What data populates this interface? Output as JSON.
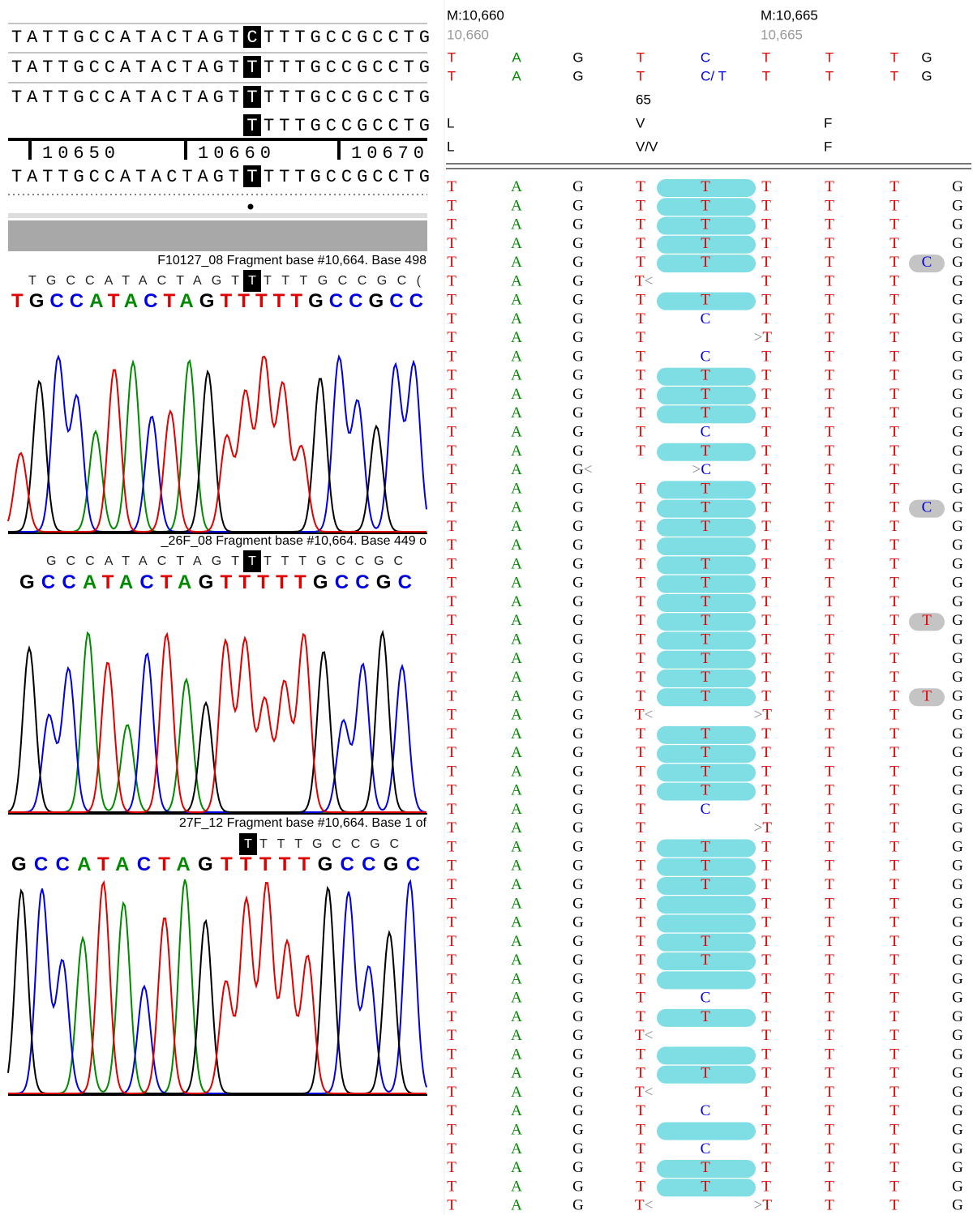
{
  "reference_panel": {
    "rows": [
      {
        "left": "TATTGCCATACTAGT",
        "mark": "C",
        "right": "TTTGCCGCCTG"
      },
      {
        "left": "TATTGCCATACTAGT",
        "mark": "T",
        "right": "TTTGCCGCCTG"
      },
      {
        "left": "TATTGCCATACTAGT",
        "mark": "T",
        "right": "TTTGCCGCCTG"
      },
      {
        "mark": "T",
        "right": "TTTGCCGCCTG"
      }
    ],
    "ruler": [
      "10650",
      "10660",
      "10670"
    ],
    "consensus": {
      "left": "TATTGCCATACTAGT",
      "mark": "T",
      "right": "TTTGCCGCCTG"
    }
  },
  "traces": [
    {
      "title": "F10127_08 Fragment base #10,664.  Base 498",
      "read": {
        "left": "TGCCATACTAGT",
        "mark": "T",
        "right": "TTTGCCGC("
      },
      "calls": "TGCCATACTAGTTTTTGCCGCC"
    },
    {
      "title": "_26F_08 Fragment base #10,664.  Base 449 o",
      "read": {
        "left": "GCCATACTAGT",
        "mark": "T",
        "right": "TTTGCCGC"
      },
      "calls": "GCCATACTAGTTTTTGCCGC"
    },
    {
      "title": "27F_12 Fragment base #10,664.  Base 1 of",
      "read": {
        "mark": "T",
        "right": "TTTGCCGC"
      },
      "calls": "GCCATACTAGTTTTTGCCGC"
    }
  ],
  "alignment": {
    "positions": [
      {
        "label": "M:10,660",
        "sub": "10,660"
      },
      {
        "label": "M:10,665",
        "sub": "10,665"
      }
    ],
    "reference": [
      [
        "T",
        "A",
        "G",
        "T",
        "C",
        "T",
        "T",
        "T",
        "G"
      ],
      [
        "T",
        "A",
        "G",
        "T",
        "C/ T",
        "T",
        "T",
        "T",
        "G"
      ]
    ],
    "codon_number": "65",
    "translation": [
      [
        "L",
        "V",
        "F"
      ],
      [
        "L",
        "V/V",
        "F"
      ]
    ],
    "reads": [
      {
        "bases": [
          "T",
          "A",
          "G",
          "T",
          "T",
          "T",
          "T",
          "T",
          null,
          "G"
        ],
        "highlight": true
      },
      {
        "bases": [
          "T",
          "A",
          "G",
          "T",
          "T",
          "T",
          "T",
          "T",
          null,
          "G"
        ],
        "highlight": true
      },
      {
        "bases": [
          "T",
          "A",
          "G",
          "T",
          "T",
          "T",
          "T",
          "T",
          null,
          "G"
        ],
        "highlight": true
      },
      {
        "bases": [
          "T",
          "A",
          "G",
          "T",
          "T",
          "T",
          "T",
          "T",
          null,
          "G"
        ],
        "highlight": true
      },
      {
        "bases": [
          "T",
          "A",
          "G",
          "T",
          "T",
          "T",
          "T",
          "T",
          "C",
          "G"
        ],
        "highlight": true
      },
      {
        "bases": [
          "T",
          "A",
          "G",
          "T<",
          null,
          "T",
          "T",
          "T",
          null,
          "G"
        ],
        "highlight": false
      },
      {
        "bases": [
          "T",
          "A",
          "G",
          "T",
          "T",
          "T",
          "T",
          "T",
          null,
          "G"
        ],
        "highlight": true
      },
      {
        "bases": [
          "T",
          "A",
          "G",
          "T",
          "C",
          "T",
          "T",
          "T",
          null,
          "G"
        ],
        "highlight": false
      },
      {
        "bases": [
          "T",
          "A",
          "G",
          "T",
          null,
          ">T",
          "T",
          "T",
          null,
          "G"
        ],
        "highlight": false
      },
      {
        "bases": [
          "T",
          "A",
          "G",
          "T",
          "C",
          "T",
          "T",
          "T",
          null,
          "G"
        ],
        "highlight": false
      },
      {
        "bases": [
          "T",
          "A",
          "G",
          "T",
          "T",
          "T",
          "T",
          "T",
          null,
          "G"
        ],
        "highlight": true
      },
      {
        "bases": [
          "T",
          "A",
          "G",
          "T",
          "T",
          "T",
          "T",
          "T",
          null,
          "G"
        ],
        "highlight": true
      },
      {
        "bases": [
          "T",
          "A",
          "G",
          "T",
          "T",
          "T",
          "T",
          "T",
          null,
          "G"
        ],
        "highlight": true
      },
      {
        "bases": [
          "T",
          "A",
          "G",
          "T",
          "C",
          "T",
          "T",
          "T",
          null,
          "G"
        ],
        "highlight": false
      },
      {
        "bases": [
          "T",
          "A",
          "G",
          "T",
          "T",
          "T",
          "T",
          "T",
          null,
          "G"
        ],
        "highlight": true
      },
      {
        "bases": [
          "T",
          "A",
          "G<",
          null,
          ">C",
          "T",
          "T",
          "T",
          null,
          "G"
        ],
        "highlight": false
      },
      {
        "bases": [
          "T",
          "A",
          "G",
          "T",
          "T",
          "T",
          "T",
          "T",
          null,
          "G"
        ],
        "highlight": true
      },
      {
        "bases": [
          "T",
          "A",
          "G",
          "T",
          "T",
          "T",
          "T",
          "T",
          "C",
          "G"
        ],
        "highlight": true
      },
      {
        "bases": [
          "T",
          "A",
          "G",
          "T",
          "T",
          "T",
          "T",
          "T",
          null,
          "G"
        ],
        "highlight": true
      },
      {
        "bases": [
          "T",
          "A",
          "G",
          "T",
          null,
          "T",
          "T",
          "T",
          null,
          "G"
        ],
        "highlight": true
      },
      {
        "bases": [
          "T",
          "A",
          "G",
          "T",
          "T",
          "T",
          "T",
          "T",
          null,
          "G"
        ],
        "highlight": true
      },
      {
        "bases": [
          "T",
          "A",
          "G",
          "T",
          "T",
          "T",
          "T",
          "T",
          null,
          "G"
        ],
        "highlight": true
      },
      {
        "bases": [
          "T",
          "A",
          "G",
          "T",
          "T",
          "T",
          "T",
          "T",
          null,
          "G"
        ],
        "highlight": true
      },
      {
        "bases": [
          "T",
          "A",
          "G",
          "T",
          "T",
          "T",
          "T",
          "T",
          "T",
          "G"
        ],
        "highlight": true
      },
      {
        "bases": [
          "T",
          "A",
          "G",
          "T",
          "T",
          "T",
          "T",
          "T",
          null,
          "G"
        ],
        "highlight": true
      },
      {
        "bases": [
          "T",
          "A",
          "G",
          "T",
          "T",
          "T",
          "T",
          "T",
          null,
          "G"
        ],
        "highlight": true
      },
      {
        "bases": [
          "T",
          "A",
          "G",
          "T",
          "T",
          "T",
          "T",
          "T",
          null,
          "G"
        ],
        "highlight": true
      },
      {
        "bases": [
          "T",
          "A",
          "G",
          "T",
          "T",
          "T",
          "T",
          "T",
          "T",
          "G"
        ],
        "highlight": true
      },
      {
        "bases": [
          "T",
          "A",
          "G",
          "T<",
          null,
          ">T",
          "T",
          "T",
          null,
          "G"
        ],
        "highlight": false
      },
      {
        "bases": [
          "T",
          "A",
          "G",
          "T",
          "T",
          "T",
          "T",
          "T",
          null,
          "G"
        ],
        "highlight": true
      },
      {
        "bases": [
          "T",
          "A",
          "G",
          "T",
          "T",
          "T",
          "T",
          "T",
          null,
          "G"
        ],
        "highlight": true
      },
      {
        "bases": [
          "T",
          "A",
          "G",
          "T",
          "T",
          "T",
          "T",
          "T",
          null,
          "G"
        ],
        "highlight": true
      },
      {
        "bases": [
          "T",
          "A",
          "G",
          "T",
          "T",
          "T",
          "T",
          "T",
          null,
          "G"
        ],
        "highlight": true
      },
      {
        "bases": [
          "T",
          "A",
          "G",
          "T",
          "C",
          "T",
          "T",
          "T",
          null,
          "G"
        ],
        "highlight": false
      },
      {
        "bases": [
          "T",
          "A",
          "G",
          "T",
          null,
          ">T",
          "T",
          "T",
          null,
          "G"
        ],
        "highlight": false
      },
      {
        "bases": [
          "T",
          "A",
          "G",
          "T",
          "T",
          "T",
          "T",
          "T",
          null,
          "G"
        ],
        "highlight": true
      },
      {
        "bases": [
          "T",
          "A",
          "G",
          "T",
          "T",
          "T",
          "T",
          "T",
          null,
          "G"
        ],
        "highlight": true
      },
      {
        "bases": [
          "T",
          "A",
          "G",
          "T",
          "T",
          "T",
          "T",
          "T",
          null,
          "G"
        ],
        "highlight": true
      },
      {
        "bases": [
          "T",
          "A",
          "G",
          "T",
          null,
          "T",
          "T",
          "T",
          null,
          "G"
        ],
        "highlight": true
      },
      {
        "bases": [
          "T",
          "A",
          "G",
          "T",
          null,
          "T",
          "T",
          "T",
          null,
          "G"
        ],
        "highlight": true
      },
      {
        "bases": [
          "T",
          "A",
          "G",
          "T",
          "T",
          "T",
          "T",
          "T",
          null,
          "G"
        ],
        "highlight": true
      },
      {
        "bases": [
          "T",
          "A",
          "G",
          "T",
          "T",
          "T",
          "T",
          "T",
          null,
          "G"
        ],
        "highlight": true
      },
      {
        "bases": [
          "T",
          "A",
          "G",
          "T",
          null,
          "T",
          "T",
          "T",
          null,
          "G"
        ],
        "highlight": true
      },
      {
        "bases": [
          "T",
          "A",
          "G",
          "T",
          "C",
          "T",
          "T",
          "T",
          null,
          "G"
        ],
        "highlight": false
      },
      {
        "bases": [
          "T",
          "A",
          "G",
          "T",
          "T",
          "T",
          "T",
          "T",
          null,
          "G"
        ],
        "highlight": true
      },
      {
        "bases": [
          "T",
          "A",
          "G",
          "T<",
          null,
          "T",
          "T",
          "T",
          null,
          "G"
        ],
        "highlight": false
      },
      {
        "bases": [
          "T",
          "A",
          "G",
          "T",
          null,
          "T",
          "T",
          "T",
          null,
          "G"
        ],
        "highlight": true
      },
      {
        "bases": [
          "T",
          "A",
          "G",
          "T",
          "T",
          "T",
          "T",
          "T",
          null,
          "G"
        ],
        "highlight": true
      },
      {
        "bases": [
          "T",
          "A",
          "G",
          "T<",
          null,
          "T",
          "T",
          "T",
          null,
          "G"
        ],
        "highlight": false
      },
      {
        "bases": [
          "T",
          "A",
          "G",
          "T",
          "C",
          "T",
          "T",
          "T",
          null,
          "G"
        ],
        "highlight": false
      },
      {
        "bases": [
          "T",
          "A",
          "G",
          "T",
          null,
          "T",
          "T",
          "T",
          null,
          "G"
        ],
        "highlight": true
      },
      {
        "bases": [
          "T",
          "A",
          "G",
          "T",
          "C",
          "T",
          "T",
          "T",
          null,
          "G"
        ],
        "highlight": false
      },
      {
        "bases": [
          "T",
          "A",
          "G",
          "T",
          "T",
          "T",
          "T",
          "T",
          null,
          "G"
        ],
        "highlight": true
      },
      {
        "bases": [
          "T",
          "A",
          "G",
          "T",
          "T",
          "T",
          "T",
          "T",
          null,
          "G"
        ],
        "highlight": true
      },
      {
        "bases": [
          "T",
          "A",
          "G",
          "T<",
          null,
          ">T",
          "T",
          "T",
          null,
          "G"
        ],
        "highlight": false
      }
    ]
  }
}
